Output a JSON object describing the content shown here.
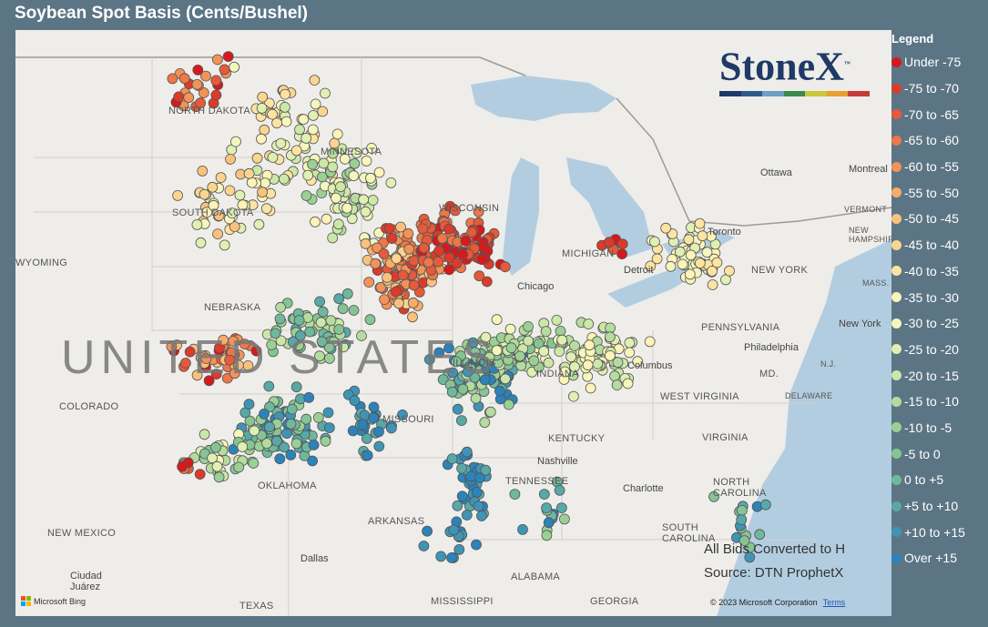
{
  "title": "Soybean Spot Basis (Cents/Bushel)",
  "legend": {
    "title": "Legend",
    "items": [
      {
        "label": "Under -75",
        "color": "#d7191c"
      },
      {
        "label": "-75 to -70",
        "color": "#dc3a2a"
      },
      {
        "label": "-70 to -65",
        "color": "#e55a3a"
      },
      {
        "label": "-65 to -60",
        "color": "#ec7748"
      },
      {
        "label": "-60 to -55",
        "color": "#f39357"
      },
      {
        "label": "-55 to -50",
        "color": "#f7ac68"
      },
      {
        "label": "-50 to -45",
        "color": "#f9c27c"
      },
      {
        "label": "-45 to -40",
        "color": "#fbd590"
      },
      {
        "label": "-40 to -35",
        "color": "#fde3a2"
      },
      {
        "label": "-35 to -30",
        "color": "#fef3b8"
      },
      {
        "label": "-30 to -25",
        "color": "#f4f6bb"
      },
      {
        "label": "-25 to -20",
        "color": "#e0efb2"
      },
      {
        "label": "-20 to -15",
        "color": "#cce8a8"
      },
      {
        "label": "-15 to -10",
        "color": "#b5dc9e"
      },
      {
        "label": "-10 to -5",
        "color": "#9bd095"
      },
      {
        "label": "-5 to 0",
        "color": "#85c495"
      },
      {
        "label": "0 to +5",
        "color": "#6fb89d"
      },
      {
        "label": "+5 to +10",
        "color": "#58a8a8"
      },
      {
        "label": "+10 to +15",
        "color": "#3f94b5"
      },
      {
        "label": "Over +15",
        "color": "#2b83ba"
      }
    ]
  },
  "logo": {
    "text": "StoneX",
    "tm": "™",
    "bar_colors": [
      "#1f3a66",
      "#2f5a8a",
      "#6f9fc4",
      "#3a8a4a",
      "#c8c83a",
      "#e8a030",
      "#c83a3a"
    ]
  },
  "notes": {
    "line1": "All Bids Converted to H",
    "line2": "Source: DTN ProphetX"
  },
  "copyright": "© 2023 Microsoft Corporation",
  "terms_link": "Terms",
  "bing_label": "Microsoft Bing",
  "map_labels": {
    "country": "UNITED STATES",
    "states": [
      {
        "text": "NORTH DAKOTA"
      },
      {
        "text": "SOUTH DAKOTA"
      },
      {
        "text": "MINNESOTA"
      },
      {
        "text": "WYOMING"
      },
      {
        "text": "NEBRASKA"
      },
      {
        "text": "COLORADO"
      },
      {
        "text": "MISSOURI"
      },
      {
        "text": "KENTUCKY"
      },
      {
        "text": "TENNESSEE"
      },
      {
        "text": "OKLAHOMA"
      },
      {
        "text": "ARKANSAS"
      },
      {
        "text": "NEW MEXICO"
      },
      {
        "text": "TEXAS"
      },
      {
        "text": "MISSISSIPPI"
      },
      {
        "text": "ALABAMA"
      },
      {
        "text": "GEORGIA"
      },
      {
        "text": "WEST VIRGINIA"
      },
      {
        "text": "VIRGINIA"
      },
      {
        "text": "PENNSYLVANIA"
      },
      {
        "text": "NEW YORK"
      },
      {
        "text": "NORTH CAROLINA"
      },
      {
        "text": "SOUTH CAROLINA"
      },
      {
        "text": "INDIANA"
      },
      {
        "text": "ILLINOIS"
      },
      {
        "text": "MICHIGAN"
      },
      {
        "text": "WISCONSIN"
      },
      {
        "text": "DELAWARE"
      },
      {
        "text": "MASS."
      },
      {
        "text": "VERMONT"
      },
      {
        "text": "NEW HAMPSHIRE"
      },
      {
        "text": "MD."
      },
      {
        "text": "N.J."
      }
    ],
    "cities": [
      {
        "text": "Ottawa"
      },
      {
        "text": "Montreal"
      },
      {
        "text": "Toronto"
      },
      {
        "text": "Detroit"
      },
      {
        "text": "Chicago"
      },
      {
        "text": "Columbus"
      },
      {
        "text": "Philadelphia"
      },
      {
        "text": "New York"
      },
      {
        "text": "Nashville"
      },
      {
        "text": "Charlotte"
      },
      {
        "text": "Dallas"
      },
      {
        "text": "Ciudad Juárez"
      }
    ]
  }
}
